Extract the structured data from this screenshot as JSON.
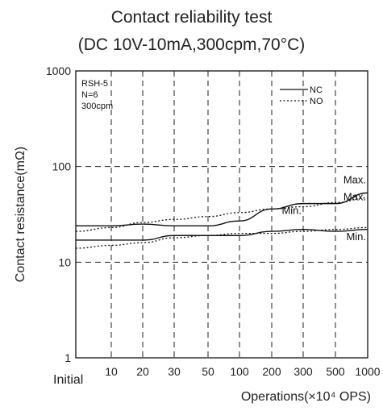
{
  "chart_data": {
    "type": "line",
    "title": "Contact reliability test",
    "subtitle": "(DC 10V-10mA,300cpm,70°C)",
    "xlabel": "Operations(×10⁴ OPS)",
    "ylabel": "Contact resistance(mΩ)",
    "y_scale": "log",
    "ylim": [
      1,
      1000
    ],
    "y_ticks": [
      "1",
      "10",
      "100",
      "1000"
    ],
    "x_ticks": [
      "Initial",
      "10",
      "20",
      "30",
      "50",
      "100",
      "200",
      "300",
      "500",
      "1000"
    ],
    "grid": true,
    "legend_position": "top-right",
    "legend": [
      {
        "label": "NC",
        "style": "solid"
      },
      {
        "label": "NO",
        "style": "dotted"
      }
    ],
    "test_info": [
      "RSH-5",
      "N=6",
      "300cpm"
    ],
    "annotations": [
      {
        "text": "Max.",
        "anchor": "end",
        "x": 1000,
        "y": 63
      },
      {
        "text": "Max.",
        "anchor": "end",
        "x": 1000,
        "y": 42
      },
      {
        "text": "Min.",
        "anchor": "end",
        "x": 300,
        "y": 30
      },
      {
        "text": "Min.",
        "anchor": "end",
        "x": 1000,
        "y": 16
      }
    ],
    "series": [
      {
        "name": "NC",
        "stat": "Max.",
        "style": "solid",
        "x": [
          "Initial",
          "10",
          "20",
          "30",
          "50",
          "100",
          "200",
          "300",
          "500",
          "1000"
        ],
        "values": [
          24,
          24,
          25,
          24,
          24,
          27,
          36,
          41,
          41,
          53
        ]
      },
      {
        "name": "NC",
        "stat": "Min.",
        "style": "solid",
        "x": [
          "Initial",
          "10",
          "20",
          "30",
          "50",
          "100",
          "200",
          "300",
          "500",
          "1000"
        ],
        "values": [
          17,
          17,
          17,
          19,
          19,
          19,
          21,
          22,
          21,
          22
        ]
      },
      {
        "name": "NO",
        "stat": "Max.",
        "style": "dotted",
        "x": [
          "Initial",
          "10",
          "20",
          "30",
          "50",
          "100",
          "200",
          "300",
          "500",
          "1000"
        ],
        "values": [
          21,
          23,
          26,
          28,
          30,
          33,
          36,
          38,
          42,
          47
        ]
      },
      {
        "name": "NO",
        "stat": "Min.",
        "style": "dotted",
        "x": [
          "Initial",
          "10",
          "20",
          "30",
          "50",
          "100",
          "200",
          "300",
          "500",
          "1000"
        ],
        "values": [
          14,
          15,
          16,
          18,
          19,
          20,
          20,
          21,
          22,
          23
        ]
      }
    ]
  }
}
